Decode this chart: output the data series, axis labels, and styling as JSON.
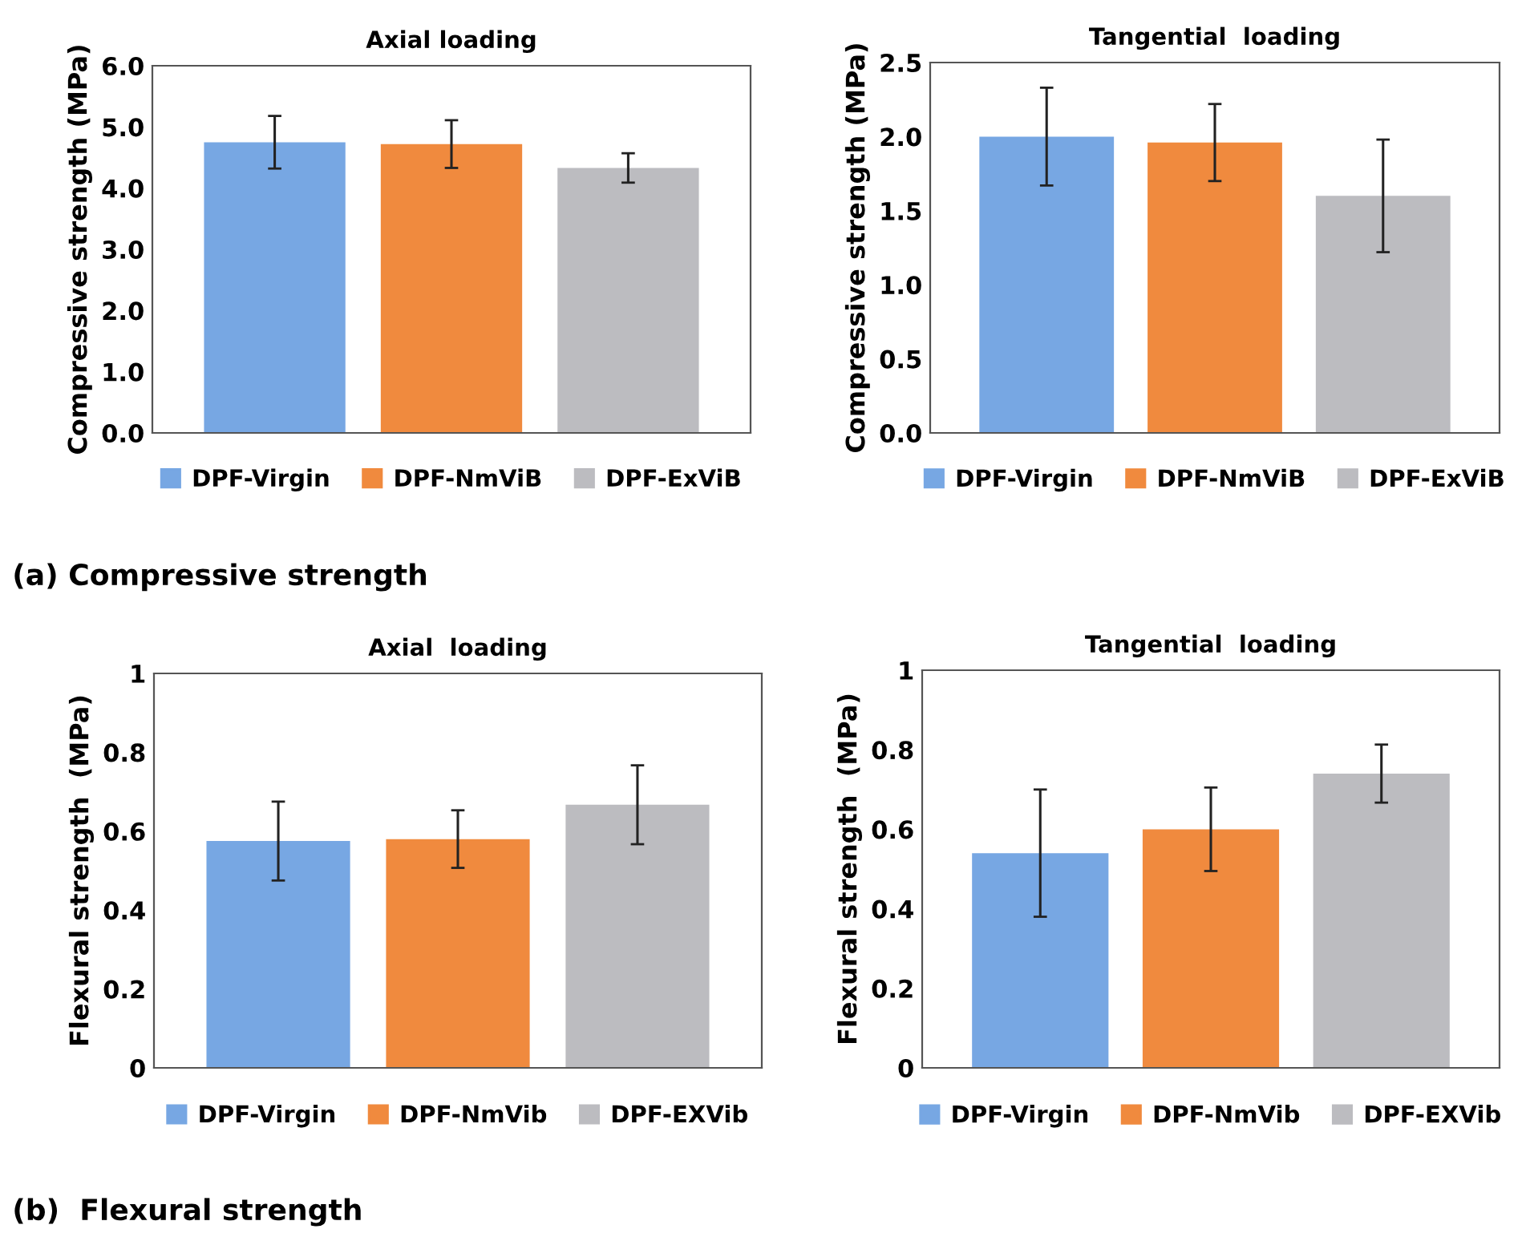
{
  "chart_data": [
    {
      "type": "bar",
      "title": "Axial loading",
      "ylabel": "Compressive strength (MPa)",
      "categories": [
        null
      ],
      "ylim": [
        0,
        6
      ],
      "yticks": [
        {
          "value": 0,
          "label": "0.0"
        },
        {
          "value": 1,
          "label": "1.0"
        },
        {
          "value": 2,
          "label": "2.0"
        },
        {
          "value": 3,
          "label": "3.0"
        },
        {
          "value": 4,
          "label": "4.0"
        },
        {
          "value": 5,
          "label": "5.0"
        },
        {
          "value": 6,
          "label": "6.0"
        }
      ],
      "grid": false,
      "legend": "bottom",
      "series": [
        {
          "name": "DPF-Virgin",
          "color": "#77a7e3",
          "values": [
            4.75
          ],
          "errors": [
            0.43
          ]
        },
        {
          "name": "DPF-NmViB",
          "color": "#f08a3e",
          "values": [
            4.72
          ],
          "errors": [
            0.39
          ]
        },
        {
          "name": "DPF-ExViB",
          "color": "#bcbcc0",
          "values": [
            4.33
          ],
          "errors": [
            0.24
          ]
        }
      ],
      "annotations": [
        "(a) Compressive strength"
      ]
    },
    {
      "type": "bar",
      "title": "Tangential  loading",
      "ylabel": "Compressive strength (MPa)",
      "categories": [
        null
      ],
      "ylim": [
        0,
        2.5
      ],
      "yticks": [
        {
          "value": 0,
          "label": "0.0"
        },
        0.5,
        {
          "value": 1,
          "label": "1.0"
        },
        1.5,
        {
          "value": 2,
          "label": "2.0"
        },
        2.5
      ],
      "grid": false,
      "legend": "bottom",
      "series": [
        {
          "name": "DPF-Virgin",
          "color": "#77a7e3",
          "values": [
            2.0
          ],
          "errors": [
            0.33
          ]
        },
        {
          "name": "DPF-NmViB",
          "color": "#f08a3e",
          "values": [
            1.96
          ],
          "errors": [
            0.26
          ]
        },
        {
          "name": "DPF-ExViB",
          "color": "#bcbcc0",
          "values": [
            1.6
          ],
          "errors": [
            0.38
          ]
        }
      ]
    },
    {
      "type": "bar",
      "title": "Axial  loading",
      "ylabel": "Flexural strength  (MPa)",
      "categories": [
        null
      ],
      "ylim": [
        0,
        1
      ],
      "yticks": [
        0,
        0.2,
        0.4,
        0.6,
        0.8,
        1
      ],
      "grid": false,
      "legend": "bottom",
      "series": [
        {
          "name": "DPF-Virgin",
          "color": "#77a7e3",
          "values": [
            0.575
          ],
          "errors": [
            0.1
          ]
        },
        {
          "name": "DPF-NmVib",
          "color": "#f08a3e",
          "values": [
            0.58
          ],
          "errors": [
            0.073
          ]
        },
        {
          "name": "DPF-EXVib",
          "color": "#bcbcc0",
          "values": [
            0.667
          ],
          "errors": [
            0.1
          ]
        }
      ],
      "annotations": [
        "(b)  Flexural strength"
      ]
    },
    {
      "type": "bar",
      "title": "Tangential  loading",
      "ylabel": "Flexural strength  (MPa)",
      "categories": [
        null
      ],
      "ylim": [
        0,
        1
      ],
      "yticks": [
        0,
        0.2,
        0.4,
        0.6,
        0.8,
        1
      ],
      "grid": false,
      "legend": "bottom",
      "series": [
        {
          "name": "DPF-Virgin",
          "color": "#77a7e3",
          "values": [
            0.54
          ],
          "errors": [
            0.16
          ]
        },
        {
          "name": "DPF-NmVib",
          "color": "#f08a3e",
          "values": [
            0.6
          ],
          "errors": [
            0.105
          ]
        },
        {
          "name": "DPF-EXVib",
          "color": "#bcbcc0",
          "values": [
            0.74
          ],
          "errors": [
            0.073
          ]
        }
      ]
    }
  ]
}
